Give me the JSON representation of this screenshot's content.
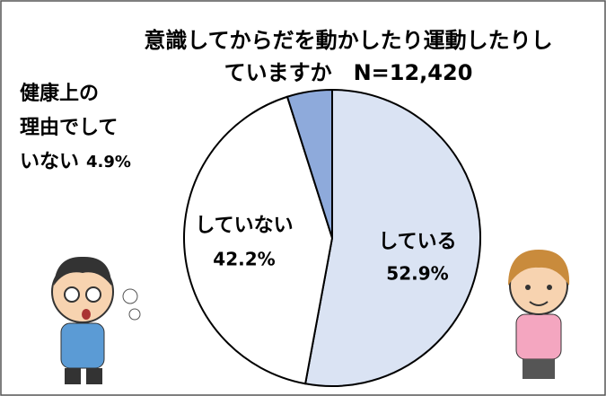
{
  "chart_data": {
    "type": "pie",
    "title": [
      "意識してからだを動かしたり運動したりし",
      "ていますか　N=12,420"
    ],
    "categories": [
      "している",
      "していない",
      "健康上の理由でしていない"
    ],
    "values": [
      52.9,
      42.2,
      4.9
    ],
    "value_labels": [
      "52.9%",
      "42.2%",
      "4.9%"
    ],
    "colors": [
      "#dae3f3",
      "#ffffff",
      "#8eaadb"
    ]
  }
}
